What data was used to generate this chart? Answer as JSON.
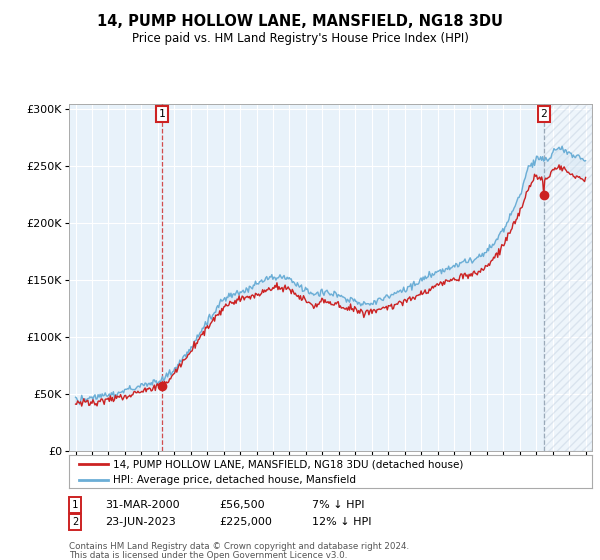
{
  "title": "14, PUMP HOLLOW LANE, MANSFIELD, NG18 3DU",
  "subtitle": "Price paid vs. HM Land Registry's House Price Index (HPI)",
  "legend_line1": "14, PUMP HOLLOW LANE, MANSFIELD, NG18 3DU (detached house)",
  "legend_line2": "HPI: Average price, detached house, Mansfield",
  "sale1_date": "31-MAR-2000",
  "sale1_price": "£56,500",
  "sale1_hpi": "7% ↓ HPI",
  "sale2_date": "23-JUN-2023",
  "sale2_price": "£225,000",
  "sale2_hpi": "12% ↓ HPI",
  "footnote1": "Contains HM Land Registry data © Crown copyright and database right 2024.",
  "footnote2": "This data is licensed under the Open Government Licence v3.0.",
  "hpi_color": "#6baed6",
  "price_color": "#cc2222",
  "sale1_vline_color": "#cc2222",
  "sale2_vline_color": "#8899aa",
  "sale_box_color": "#cc2222",
  "fill_color": "#cce0f0",
  "hatch_color": "#aabbd0",
  "bg_color": "#ffffff",
  "plot_bg_color": "#e8f2fa",
  "grid_color": "#ffffff",
  "ylim_min": 0,
  "ylim_max": 305000,
  "sale1_year": 2000.25,
  "sale1_price_val": 56500,
  "sale2_year": 2023.47,
  "sale2_price_val": 225000
}
